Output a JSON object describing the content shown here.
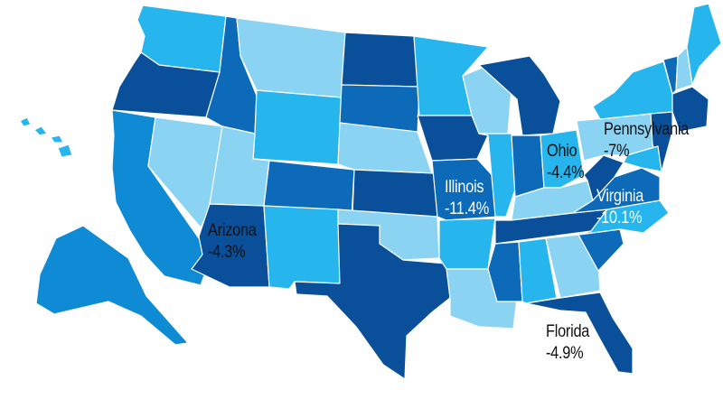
{
  "colors": {
    "lightest": "#8ad3f2",
    "light": "#27b5ee",
    "medium": "#0f8ad4",
    "dark": "#0c6ab8",
    "darkest": "#0a4f9a"
  },
  "states": [
    {
      "id": "WA",
      "shade": "light"
    },
    {
      "id": "OR",
      "shade": "darkest"
    },
    {
      "id": "CA",
      "shade": "medium"
    },
    {
      "id": "NV",
      "shade": "lightest"
    },
    {
      "id": "ID",
      "shade": "dark"
    },
    {
      "id": "MT",
      "shade": "lightest"
    },
    {
      "id": "WY",
      "shade": "light"
    },
    {
      "id": "UT",
      "shade": "lightest"
    },
    {
      "id": "CO",
      "shade": "dark"
    },
    {
      "id": "AZ",
      "shade": "darkest"
    },
    {
      "id": "NM",
      "shade": "light"
    },
    {
      "id": "ND",
      "shade": "darkest"
    },
    {
      "id": "SD",
      "shade": "dark"
    },
    {
      "id": "NE",
      "shade": "lightest"
    },
    {
      "id": "KS",
      "shade": "darkest"
    },
    {
      "id": "OK",
      "shade": "lightest"
    },
    {
      "id": "TX",
      "shade": "darkest"
    },
    {
      "id": "MN",
      "shade": "light"
    },
    {
      "id": "IA",
      "shade": "darkest"
    },
    {
      "id": "MO",
      "shade": "dark"
    },
    {
      "id": "AR",
      "shade": "light"
    },
    {
      "id": "LA",
      "shade": "lightest"
    },
    {
      "id": "WI",
      "shade": "lightest"
    },
    {
      "id": "IL",
      "shade": "light"
    },
    {
      "id": "MI",
      "shade": "darkest"
    },
    {
      "id": "IN",
      "shade": "dark"
    },
    {
      "id": "OH",
      "shade": "light"
    },
    {
      "id": "KY",
      "shade": "lightest"
    },
    {
      "id": "TN",
      "shade": "darkest"
    },
    {
      "id": "MS",
      "shade": "dark"
    },
    {
      "id": "AL",
      "shade": "light"
    },
    {
      "id": "GA",
      "shade": "lightest"
    },
    {
      "id": "FL",
      "shade": "darkest"
    },
    {
      "id": "SC",
      "shade": "dark"
    },
    {
      "id": "NC",
      "shade": "light"
    },
    {
      "id": "VA",
      "shade": "dark"
    },
    {
      "id": "WV",
      "shade": "darkest"
    },
    {
      "id": "PA",
      "shade": "lightest"
    },
    {
      "id": "NY",
      "shade": "light"
    },
    {
      "id": "VT",
      "shade": "dark"
    },
    {
      "id": "NH",
      "shade": "lightest"
    },
    {
      "id": "ME",
      "shade": "light"
    },
    {
      "id": "MA",
      "shade": "darkest"
    },
    {
      "id": "NJ",
      "shade": "darkest"
    },
    {
      "id": "MD",
      "shade": "light"
    },
    {
      "id": "AK",
      "shade": "medium"
    },
    {
      "id": "HI",
      "shade": "light"
    }
  ],
  "labels": [
    {
      "key": "arizona",
      "name": "Arizona",
      "value": "-4.3%",
      "tone": "dark"
    },
    {
      "key": "illinois",
      "name": "Illinois",
      "value": "-11.4%",
      "tone": "light"
    },
    {
      "key": "ohio",
      "name": "Ohio",
      "value": "-4.4%",
      "tone": "dark"
    },
    {
      "key": "pennsylvania",
      "name": "Pennsylvania",
      "value": "-7%",
      "tone": "dark"
    },
    {
      "key": "virginia",
      "name": "Virginia",
      "value": "-10.1%",
      "tone": "light"
    },
    {
      "key": "florida",
      "name": "Florida",
      "value": "-4.9%",
      "tone": "dark"
    }
  ]
}
